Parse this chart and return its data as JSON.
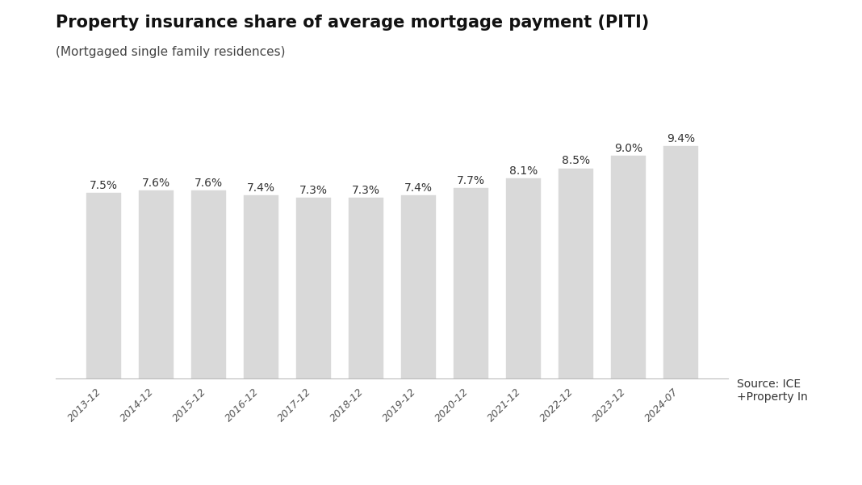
{
  "title": "Property insurance share of average mortgage payment (PITI)",
  "subtitle": "(Mortgaged single family residences)",
  "categories": [
    "2013-12",
    "2014-12",
    "2015-12",
    "2016-12",
    "2017-12",
    "2018-12",
    "2019-12",
    "2020-12",
    "2021-12",
    "2022-12",
    "2023-12",
    "2024-07"
  ],
  "values": [
    7.5,
    7.6,
    7.6,
    7.4,
    7.3,
    7.3,
    7.4,
    7.7,
    8.1,
    8.5,
    9.0,
    9.4
  ],
  "labels": [
    "7.5%",
    "7.6%",
    "7.6%",
    "7.4%",
    "7.3%",
    "7.3%",
    "7.4%",
    "7.7%",
    "8.1%",
    "8.5%",
    "9.0%",
    "9.4%"
  ],
  "bar_color": "#d9d9d9",
  "bar_edge_color": "#d9d9d9",
  "background_color": "#ffffff",
  "source_text": "Source: ICE\n+Property In",
  "title_fontsize": 15,
  "subtitle_fontsize": 11,
  "label_fontsize": 10,
  "tick_fontsize": 9,
  "source_fontsize": 10
}
